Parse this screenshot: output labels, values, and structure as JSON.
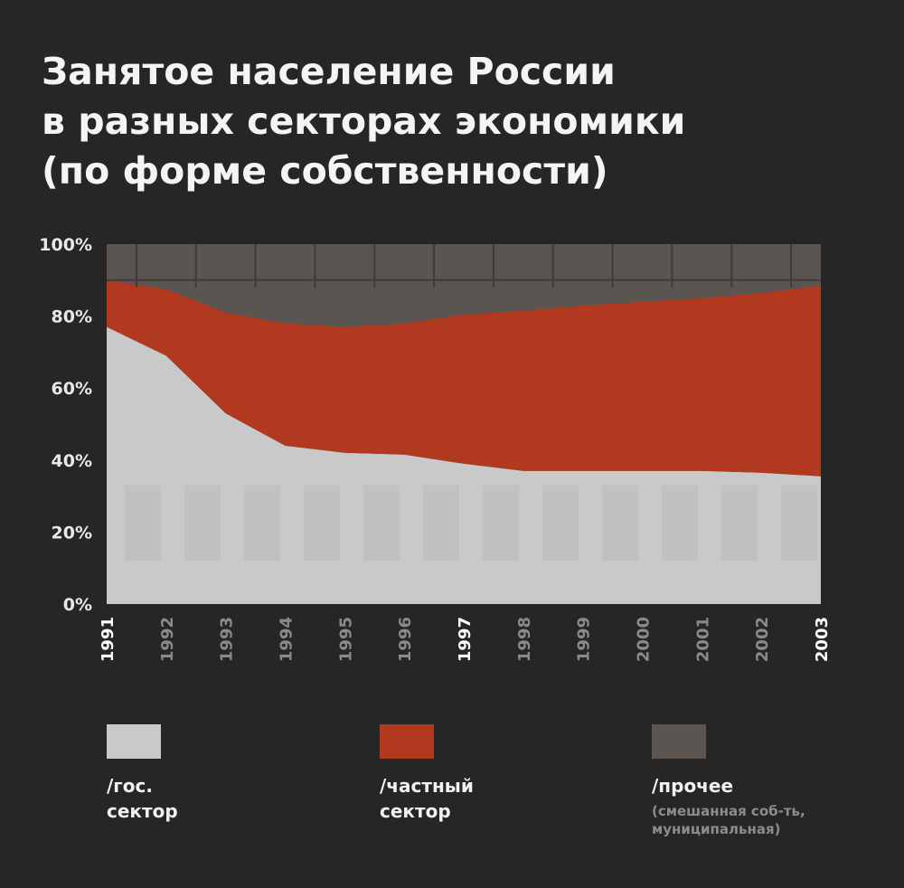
{
  "title_lines": [
    "Занятое население России",
    "в разных секторах экономики",
    "(по форме собственности)"
  ],
  "legend": [
    {
      "lines": [
        "/гос.",
        "сектор"
      ],
      "color": "#c9c9c9"
    },
    {
      "lines": [
        "/частный",
        "сектор"
      ],
      "color": "#b0391f"
    },
    {
      "lines": [
        "/прочее"
      ],
      "sub": [
        "(смешанная соб-ть,",
        "муниципальная)"
      ],
      "color": "#5a5550"
    }
  ],
  "chart_data": {
    "type": "area",
    "stacked": true,
    "x": [
      "1991",
      "1992",
      "1993",
      "1994",
      "1995",
      "1996",
      "1997",
      "1998",
      "1999",
      "2000",
      "2001",
      "2002",
      "2003"
    ],
    "highlighted_x": [
      "1991",
      "1997",
      "2003"
    ],
    "series": [
      {
        "values": [
          77,
          69,
          53,
          44,
          42,
          41.5,
          39,
          37,
          37,
          37,
          37,
          36.5,
          35.5
        ],
        "color": "#c9c9c9"
      },
      {
        "values": [
          13,
          18.5,
          28,
          34,
          35,
          36.5,
          41.5,
          44.5,
          46,
          47,
          48,
          50,
          53
        ],
        "color": "#b0391f"
      },
      {
        "values": [
          10,
          12.5,
          19,
          22,
          23,
          22,
          19.5,
          18.5,
          17,
          16,
          15,
          13.5,
          11.5
        ],
        "color": "#5a5550"
      }
    ],
    "y_ticks": [
      "0%",
      "20%",
      "40%",
      "60%",
      "80%",
      "100%"
    ],
    "ylim": [
      0,
      100
    ],
    "grid": true
  }
}
